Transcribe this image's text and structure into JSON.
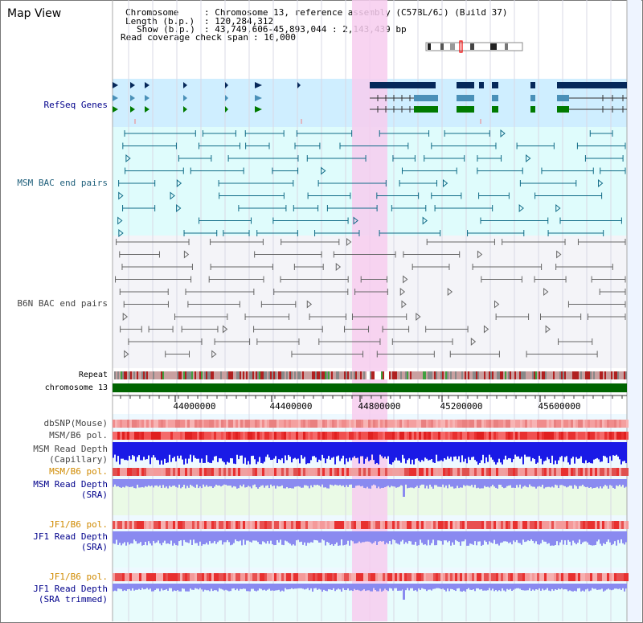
{
  "title": "Map View",
  "info": {
    "chromosome_key": "Chromosome",
    "chromosome_val": ": Chromosome 13, reference assembly (C57BL/6J) (Build 37)",
    "length_key": "Length (b.p.)",
    "length_val": ": 120,284,312",
    "show_key": "Show (b.p.)",
    "show_val": ": 43,749,606-45,893,044 : 2,143,439 bp",
    "coverage_key": "Read coverage check span",
    "coverage_val": ": 10,000"
  },
  "tracks": {
    "refseq": "RefSeq Genes",
    "msm_bac": "MSM BAC end pairs",
    "b6n_bac": "B6N BAC end pairs",
    "repeat": "Repeat",
    "chromosome": "chromosome 13",
    "dbsnp": "dbSNP(Mouse)",
    "msm_b6_pol": "MSM/B6 pol.",
    "msm_depth_cap_1": "MSM Read Depth",
    "msm_depth_cap_2": "(Capillary)",
    "msm_b6_pol_2": "MSM/B6 pol.",
    "msm_depth_sra_1": "MSM Read Depth",
    "msm_depth_sra_2": "(SRA)",
    "jf1_b6_pol": "JF1/B6 pol.",
    "jf1_depth_1": "JF1 Read Depth",
    "jf1_depth_2": "(SRA)",
    "jf1_b6_pol_2": "JF1/B6 pol.",
    "jf1_trim_1": "JF1 Read Depth",
    "jf1_trim_2": "(SRA trimmed)"
  },
  "axis": {
    "ticks": [
      "44000000",
      "44400000",
      "44800000",
      "45200000",
      "45600000"
    ]
  },
  "colors": {
    "highlight": "#f7cdee",
    "refseq_bg": "#cfeeff",
    "msm_bg": "#dffcfc",
    "b6n_bg": "#f4f4f8",
    "chrom_bar": "#006400",
    "depth_blue": "#1a1ae6",
    "depth_light": "#8a8af0",
    "pol_red": "#e8302c",
    "pol_pink": "#f49a9a"
  }
}
